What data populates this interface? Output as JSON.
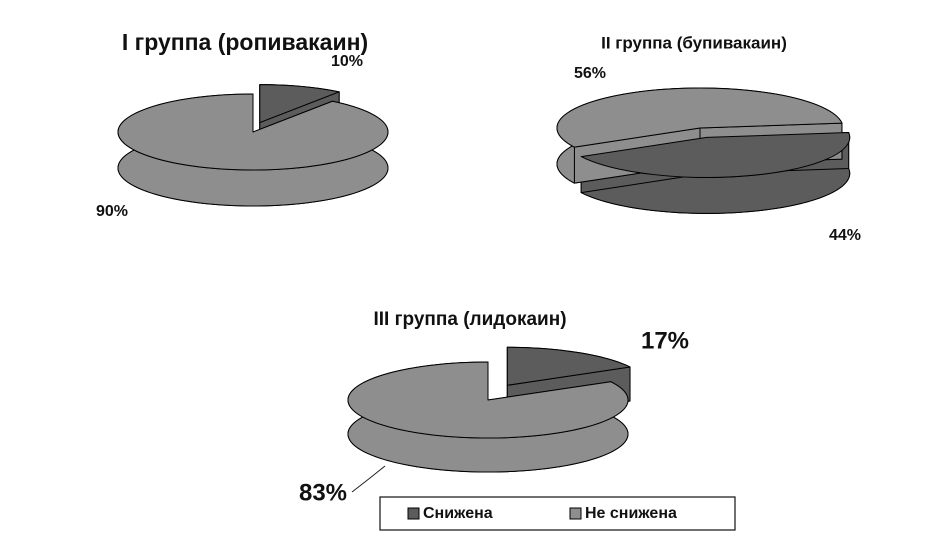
{
  "chart_data": [
    {
      "type": "pie",
      "title": "I группа (ропивакаин)",
      "values": [
        10,
        90
      ],
      "value_labels": [
        "10%",
        "90%"
      ],
      "colors": [
        "#5c5c5c",
        "#8e8e8e"
      ]
    },
    {
      "type": "pie",
      "title": "II группа  (бупивакаин)",
      "values": [
        44,
        56
      ],
      "value_labels": [
        "44%",
        "56%"
      ],
      "colors": [
        "#5c5c5c",
        "#8e8e8e"
      ]
    },
    {
      "type": "pie",
      "title": "III группа  (лидокаин)",
      "values": [
        17,
        83
      ],
      "value_labels": [
        "17%",
        "83%"
      ],
      "colors": [
        "#5c5c5c",
        "#8e8e8e"
      ],
      "categories": [
        "Снижена",
        "Не снижена"
      ],
      "legend": "bottom"
    }
  ]
}
